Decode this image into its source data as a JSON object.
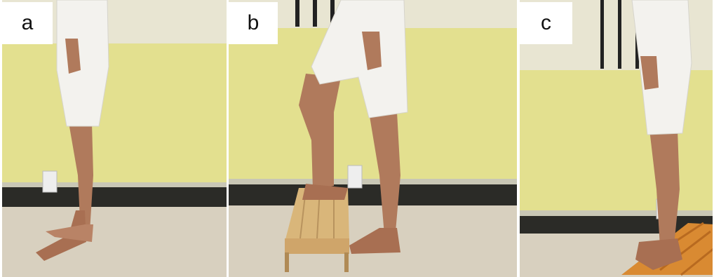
{
  "panels": [
    {
      "label": "a"
    },
    {
      "label": "b"
    },
    {
      "label": "c"
    }
  ],
  "colors": {
    "wall_yellow": "#e3e08f",
    "wall_upper": "#e8e5d2",
    "baseboard": "#2b2b27",
    "floor": "#d8d0bf",
    "skin": "#b07a5c",
    "shorts": "#f3f2ee",
    "wood_step": "#d9b67a",
    "wedge_board": "#d98a32"
  }
}
